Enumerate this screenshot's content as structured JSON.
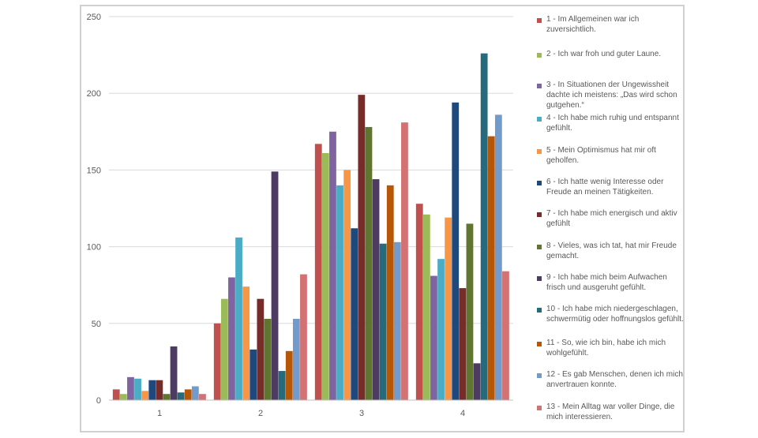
{
  "chart_data": {
    "type": "bar",
    "categories": [
      "1",
      "2",
      "3",
      "4"
    ],
    "ylim": [
      0,
      250
    ],
    "yticks": [
      0,
      50,
      100,
      150,
      200,
      250
    ],
    "grid": true,
    "legend_position": "right",
    "series": [
      {
        "name": "1 - Im Allgemeinen war ich zuversichtlich.",
        "color": "#C0504D",
        "values": [
          7,
          50,
          167,
          128
        ]
      },
      {
        "name": "2 - Ich war froh und guter Laune.",
        "color": "#9BBB59",
        "values": [
          4,
          66,
          161,
          121
        ]
      },
      {
        "name": "3 - In Situationen der Ungewissheit dachte ich meistens: „Das wird schon gutgehen.“",
        "color": "#8064A2",
        "values": [
          15,
          80,
          175,
          81
        ]
      },
      {
        "name": "4 - Ich habe mich ruhig und entspannt gefühlt.",
        "color": "#4BACC6",
        "values": [
          14,
          106,
          140,
          92
        ]
      },
      {
        "name": "5 - Mein Optimismus hat mir oft geholfen.",
        "color": "#F79646",
        "values": [
          6,
          74,
          150,
          119
        ]
      },
      {
        "name": "6 - Ich hatte wenig Interesse oder Freude an meinen Tätigkeiten.",
        "color": "#1F497D",
        "values": [
          13,
          33,
          112,
          194
        ]
      },
      {
        "name": "7 - Ich habe mich energisch und aktiv gefühlt",
        "color": "#772C2A",
        "values": [
          13,
          66,
          199,
          73
        ]
      },
      {
        "name": "8 - Vieles, was ich tat, hat mir Freude gemacht.",
        "color": "#5F7530",
        "values": [
          4,
          53,
          178,
          115
        ]
      },
      {
        "name": "9 - Ich habe mich beim Aufwachen frisch und ausgeruht gefühlt.",
        "color": "#4D3B62",
        "values": [
          35,
          149,
          144,
          24
        ]
      },
      {
        "name": "10 - Ich habe mich niedergeschlagen, schwermütig oder hoffnungslos gefühlt.",
        "color": "#276A7C",
        "values": [
          5,
          19,
          102,
          226
        ]
      },
      {
        "name": "11 - So, wie ich bin, habe ich mich wohlgefühlt.",
        "color": "#B65708",
        "values": [
          7,
          32,
          140,
          172
        ]
      },
      {
        "name": "12 - Es gab Menschen, denen ich mich anvertrauen konnte.",
        "color": "#729ACA",
        "values": [
          9,
          53,
          103,
          186
        ]
      },
      {
        "name": "13 - Mein Alltag war voller Dinge, die mich interessieren.",
        "color": "#D37272",
        "values": [
          4,
          82,
          181,
          84
        ]
      }
    ]
  }
}
